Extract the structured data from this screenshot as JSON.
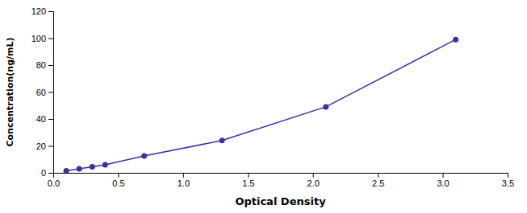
{
  "chart_data": {
    "type": "line",
    "x": [
      0.1,
      0.2,
      0.3,
      0.4,
      0.7,
      1.3,
      2.1,
      3.1
    ],
    "values": [
      1.5,
      3.0,
      4.5,
      6.0,
      12.5,
      24.0,
      49.0,
      99.0
    ],
    "color": "#3333aa",
    "marker": "circle",
    "xlabel": "Optical Density",
    "ylabel": "Concentration(ng/mL)",
    "xlim": [
      0,
      3.5
    ],
    "ylim": [
      0,
      120
    ],
    "xticks": [
      {
        "value": 0,
        "label": "0.0"
      },
      0.5,
      {
        "value": 1,
        "label": "1.0"
      },
      1.5,
      {
        "value": 2,
        "label": "2.0"
      },
      2.5,
      {
        "value": 3,
        "label": "3.0"
      },
      3.5
    ],
    "yticks": [
      0,
      20,
      40,
      60,
      80,
      100,
      120
    ]
  }
}
